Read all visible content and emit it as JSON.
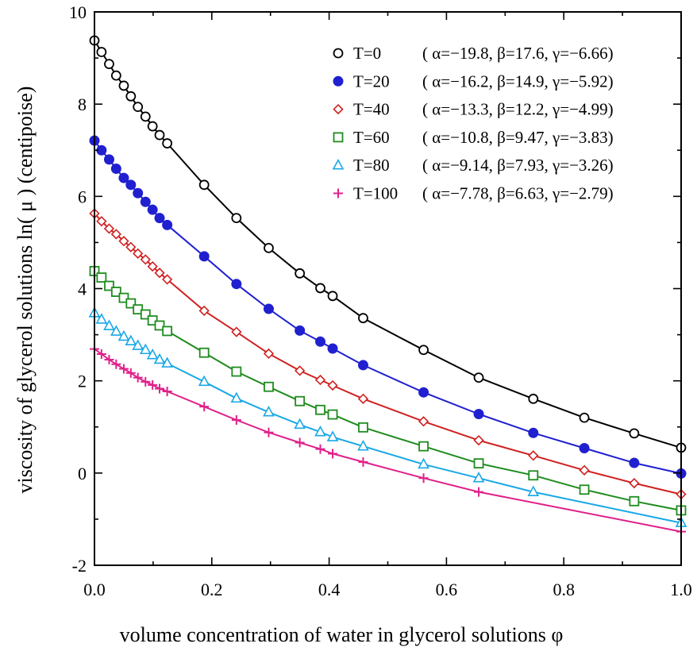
{
  "chart_data": {
    "type": "line",
    "title": "",
    "xlabel": "volume concentration of water in glycerol solutions φ",
    "ylabel": "viscosity of glycerol solutions   ln( μ )  (centipoise)",
    "xlim": [
      0.0,
      1.0
    ],
    "ylim": [
      -2,
      10
    ],
    "x_ticks": [
      0.0,
      0.2,
      0.4,
      0.6,
      0.8,
      1.0
    ],
    "x_tick_labels": [
      "0.0",
      "0.2",
      "0.4",
      "0.6",
      "0.8",
      "1.0"
    ],
    "y_ticks": [
      -2,
      0,
      2,
      4,
      6,
      8,
      10
    ],
    "y_tick_labels": [
      "-2",
      "0",
      "2",
      "4",
      "6",
      "8",
      "10"
    ],
    "grid": false,
    "legend_position": "top-right",
    "series": [
      {
        "name": "T=0",
        "params": "( α=−19.8, β=17.6, γ=−6.66)",
        "marker": "open-circle",
        "marker_color": "#000000",
        "line_color": "#000000",
        "points": [
          [
            0.0,
            9.38
          ],
          [
            0.012,
            9.13
          ],
          [
            0.025,
            8.87
          ],
          [
            0.037,
            8.62
          ],
          [
            0.05,
            8.4
          ],
          [
            0.062,
            8.17
          ],
          [
            0.074,
            7.94
          ],
          [
            0.087,
            7.73
          ],
          [
            0.099,
            7.52
          ],
          [
            0.111,
            7.33
          ],
          [
            0.124,
            7.15
          ],
          [
            0.187,
            6.25
          ],
          [
            0.242,
            5.53
          ],
          [
            0.297,
            4.88
          ],
          [
            0.35,
            4.33
          ],
          [
            0.385,
            4.01
          ],
          [
            0.406,
            3.84
          ],
          [
            0.458,
            3.36
          ],
          [
            0.561,
            2.67
          ],
          [
            0.655,
            2.07
          ],
          [
            0.748,
            1.61
          ],
          [
            0.835,
            1.2
          ],
          [
            0.92,
            0.86
          ],
          [
            1.0,
            0.55
          ]
        ]
      },
      {
        "name": "T=20",
        "params": "( α=−16.2, β=14.9, γ=−5.92)",
        "marker": "filled-circle",
        "marker_color": "#2020d0",
        "line_color": "#2020d0",
        "points": [
          [
            0.0,
            7.21
          ],
          [
            0.012,
            7.0
          ],
          [
            0.025,
            6.8
          ],
          [
            0.037,
            6.6
          ],
          [
            0.05,
            6.4
          ],
          [
            0.062,
            6.25
          ],
          [
            0.074,
            6.07
          ],
          [
            0.087,
            5.88
          ],
          [
            0.099,
            5.71
          ],
          [
            0.111,
            5.53
          ],
          [
            0.124,
            5.38
          ],
          [
            0.187,
            4.7
          ],
          [
            0.242,
            4.1
          ],
          [
            0.297,
            3.56
          ],
          [
            0.35,
            3.09
          ],
          [
            0.385,
            2.85
          ],
          [
            0.406,
            2.7
          ],
          [
            0.458,
            2.34
          ],
          [
            0.561,
            1.75
          ],
          [
            0.655,
            1.28
          ],
          [
            0.748,
            0.87
          ],
          [
            0.835,
            0.54
          ],
          [
            0.92,
            0.22
          ],
          [
            1.0,
            -0.01
          ]
        ]
      },
      {
        "name": "T=40",
        "params": "( α=−13.3, β=12.2, γ=−4.99)",
        "marker": "open-diamond",
        "marker_color": "#d02020",
        "line_color": "#d02020",
        "points": [
          [
            0.0,
            5.63
          ],
          [
            0.012,
            5.46
          ],
          [
            0.025,
            5.3
          ],
          [
            0.037,
            5.18
          ],
          [
            0.05,
            5.03
          ],
          [
            0.062,
            4.9
          ],
          [
            0.074,
            4.76
          ],
          [
            0.087,
            4.63
          ],
          [
            0.099,
            4.48
          ],
          [
            0.111,
            4.34
          ],
          [
            0.124,
            4.2
          ],
          [
            0.187,
            3.52
          ],
          [
            0.242,
            3.06
          ],
          [
            0.297,
            2.59
          ],
          [
            0.35,
            2.22
          ],
          [
            0.385,
            2.02
          ],
          [
            0.406,
            1.9
          ],
          [
            0.458,
            1.61
          ],
          [
            0.561,
            1.12
          ],
          [
            0.655,
            0.71
          ],
          [
            0.748,
            0.38
          ],
          [
            0.835,
            0.06
          ],
          [
            0.92,
            -0.22
          ],
          [
            1.0,
            -0.46
          ]
        ]
      },
      {
        "name": "T=60",
        "params": "( α=−10.8, β=9.47, γ=−3.83)",
        "marker": "open-square",
        "marker_color": "#1f8c1f",
        "line_color": "#1f8c1f",
        "points": [
          [
            0.0,
            4.38
          ],
          [
            0.012,
            4.24
          ],
          [
            0.025,
            4.06
          ],
          [
            0.037,
            3.93
          ],
          [
            0.05,
            3.8
          ],
          [
            0.062,
            3.68
          ],
          [
            0.074,
            3.55
          ],
          [
            0.087,
            3.44
          ],
          [
            0.099,
            3.31
          ],
          [
            0.111,
            3.2
          ],
          [
            0.124,
            3.08
          ],
          [
            0.187,
            2.61
          ],
          [
            0.242,
            2.2
          ],
          [
            0.297,
            1.87
          ],
          [
            0.35,
            1.56
          ],
          [
            0.385,
            1.37
          ],
          [
            0.406,
            1.27
          ],
          [
            0.458,
            0.99
          ],
          [
            0.561,
            0.58
          ],
          [
            0.655,
            0.21
          ],
          [
            0.748,
            -0.05
          ],
          [
            0.835,
            -0.36
          ],
          [
            0.92,
            -0.61
          ],
          [
            1.0,
            -0.81
          ]
        ]
      },
      {
        "name": "T=80",
        "params": "( α=−9.14, β=7.93, γ=−3.26)",
        "marker": "open-triangle",
        "marker_color": "#19a8e6",
        "line_color": "#19a8e6",
        "points": [
          [
            0.0,
            3.47
          ],
          [
            0.012,
            3.33
          ],
          [
            0.025,
            3.19
          ],
          [
            0.037,
            3.07
          ],
          [
            0.05,
            2.96
          ],
          [
            0.062,
            2.86
          ],
          [
            0.074,
            2.76
          ],
          [
            0.087,
            2.67
          ],
          [
            0.099,
            2.56
          ],
          [
            0.111,
            2.46
          ],
          [
            0.124,
            2.38
          ],
          [
            0.187,
            1.98
          ],
          [
            0.242,
            1.62
          ],
          [
            0.297,
            1.32
          ],
          [
            0.35,
            1.05
          ],
          [
            0.385,
            0.89
          ],
          [
            0.406,
            0.78
          ],
          [
            0.458,
            0.58
          ],
          [
            0.561,
            0.19
          ],
          [
            0.655,
            -0.11
          ],
          [
            0.748,
            -0.41
          ],
          [
            1.0,
            -1.08
          ]
        ]
      },
      {
        "name": "T=100",
        "params": "( α=−7.78, β=6.63, γ=−2.79)",
        "marker": "plus",
        "marker_color": "#e0208a",
        "line_color": "#e0208a",
        "points": [
          [
            0.0,
            2.69
          ],
          [
            0.012,
            2.58
          ],
          [
            0.025,
            2.46
          ],
          [
            0.037,
            2.36
          ],
          [
            0.05,
            2.26
          ],
          [
            0.062,
            2.17
          ],
          [
            0.074,
            2.07
          ],
          [
            0.087,
            1.98
          ],
          [
            0.099,
            1.91
          ],
          [
            0.111,
            1.83
          ],
          [
            0.124,
            1.77
          ],
          [
            0.187,
            1.44
          ],
          [
            0.242,
            1.15
          ],
          [
            0.297,
            0.88
          ],
          [
            0.35,
            0.66
          ],
          [
            0.385,
            0.52
          ],
          [
            0.406,
            0.42
          ],
          [
            0.458,
            0.24
          ],
          [
            0.561,
            -0.11
          ],
          [
            0.655,
            -0.41
          ],
          [
            1.0,
            -1.27
          ]
        ]
      }
    ]
  }
}
